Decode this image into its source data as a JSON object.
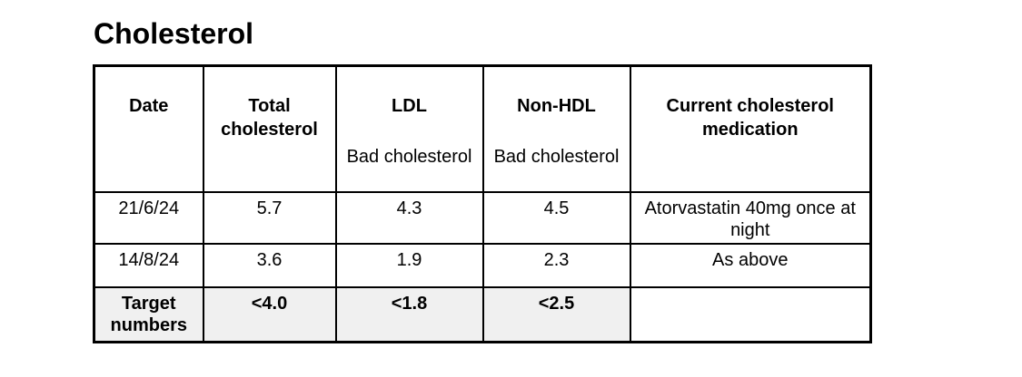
{
  "page": {
    "title": "Cholesterol"
  },
  "table": {
    "columns": [
      {
        "label": "Date",
        "sublabel": ""
      },
      {
        "label": "Total cholesterol",
        "sublabel": ""
      },
      {
        "label": "LDL",
        "sublabel": "Bad cholesterol"
      },
      {
        "label": "Non-HDL",
        "sublabel": "Bad cholesterol"
      },
      {
        "label": "Current cholesterol medication",
        "sublabel": ""
      }
    ],
    "rows": [
      {
        "date": "21/6/24",
        "total_cholesterol": "5.7",
        "ldl": "4.3",
        "non_hdl": "4.5",
        "medication": "Atorvastatin 40mg once at night"
      },
      {
        "date": "14/8/24",
        "total_cholesterol": "3.6",
        "ldl": "1.9",
        "non_hdl": "2.3",
        "medication": "As above"
      }
    ],
    "target_row": {
      "label": "Target numbers",
      "total_cholesterol": "<4.0",
      "ldl": "<1.8",
      "non_hdl": "<2.5",
      "medication": ""
    }
  },
  "colors": {
    "page_bg": "#ffffff",
    "border": "#000000",
    "target_row_bg": "#f0f0f0"
  }
}
